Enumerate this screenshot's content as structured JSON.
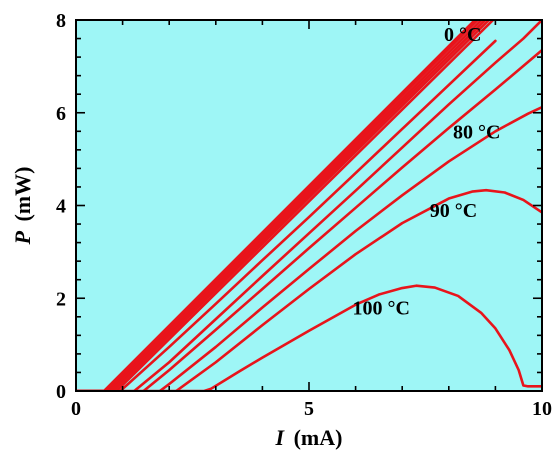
{
  "chart_data": {
    "type": "line",
    "title": "",
    "xlabel": "I (mA)",
    "xlabel_var": "I",
    "xlabel_unit": "(mA)",
    "ylabel": "P (mW)",
    "ylabel_var": "P",
    "ylabel_unit": "(mW)",
    "xlim": [
      0,
      10
    ],
    "ylim": [
      0,
      8
    ],
    "x_major_ticks": [
      0,
      5,
      10
    ],
    "y_major_ticks": [
      0,
      2,
      4,
      6,
      8
    ],
    "x_minor_step": 1,
    "y_minor_step": 0.4,
    "grid": false,
    "legend": "none",
    "background_color": "#9ef6f6",
    "line_color": "#e8141b",
    "tick_labels_x": [
      "0",
      "5",
      "10"
    ],
    "tick_labels_y": [
      "0",
      "2",
      "4",
      "6",
      "8"
    ],
    "annotations": [
      {
        "text": "0 °C",
        "x": 8.3,
        "y": 7.55
      },
      {
        "text": "80 °C",
        "x": 8.6,
        "y": 5.45
      },
      {
        "text": "90 °C",
        "x": 8.1,
        "y": 3.75
      },
      {
        "text": "100 °C",
        "x": 6.55,
        "y": 1.65
      }
    ],
    "series": [
      {
        "x": [
          0,
          0.6,
          8.56
        ],
        "y": [
          0,
          0,
          8
        ]
      },
      {
        "x": [
          0,
          0.65,
          8.62
        ],
        "y": [
          0,
          0,
          8
        ]
      },
      {
        "x": [
          0,
          0.7,
          8.7
        ],
        "y": [
          0,
          0,
          8
        ]
      },
      {
        "x": [
          0,
          0.75,
          8.78
        ],
        "y": [
          0,
          0,
          8
        ]
      },
      {
        "x": [
          0,
          0.8,
          8.86
        ],
        "y": [
          0,
          0,
          8
        ]
      },
      {
        "x": [
          0,
          0.87,
          8.95
        ],
        "y": [
          0,
          0,
          8
        ]
      },
      {
        "x": [
          0.95,
          2,
          3,
          4,
          5,
          6,
          7,
          8,
          9.0
        ],
        "y": [
          0,
          0.95,
          1.88,
          2.82,
          3.75,
          4.7,
          5.65,
          6.6,
          7.55
        ]
      },
      {
        "x": [
          1.25,
          2,
          3,
          4,
          5,
          6,
          7,
          8,
          9,
          9.6,
          10
        ],
        "y": [
          0,
          0.62,
          1.55,
          2.48,
          3.4,
          4.32,
          5.25,
          6.18,
          7.08,
          7.6,
          8.0
        ]
      },
      {
        "x": [
          1.45,
          2,
          3,
          4,
          5,
          6,
          7,
          8,
          9,
          10
        ],
        "y": [
          0,
          0.45,
          1.32,
          2.2,
          3.08,
          3.95,
          4.82,
          5.67,
          6.5,
          7.35
        ]
      },
      {
        "x": [
          1.8,
          2,
          3,
          4,
          5,
          6,
          7,
          8,
          9,
          9.7,
          10
        ],
        "y": [
          0,
          0.15,
          0.95,
          1.8,
          2.63,
          3.45,
          4.22,
          4.95,
          5.6,
          5.98,
          6.12
        ]
      },
      {
        "x": [
          2.15,
          3,
          4,
          5,
          6,
          7,
          8,
          8.5,
          8.8,
          9.2,
          9.6,
          10
        ],
        "y": [
          0,
          0.62,
          1.42,
          2.2,
          2.95,
          3.62,
          4.15,
          4.3,
          4.33,
          4.28,
          4.12,
          3.85
        ]
      },
      {
        "x": [
          0.4,
          2.75,
          2.9,
          3.5,
          4,
          5,
          6,
          6.5,
          7,
          7.3,
          7.7,
          8.2,
          8.7,
          9,
          9.3,
          9.5,
          9.6,
          9.7,
          10
        ],
        "y": [
          0,
          0,
          0.05,
          0.42,
          0.72,
          1.3,
          1.86,
          2.08,
          2.22,
          2.27,
          2.23,
          2.05,
          1.68,
          1.35,
          0.88,
          0.45,
          0.12,
          0.1,
          0.1
        ]
      }
    ]
  }
}
